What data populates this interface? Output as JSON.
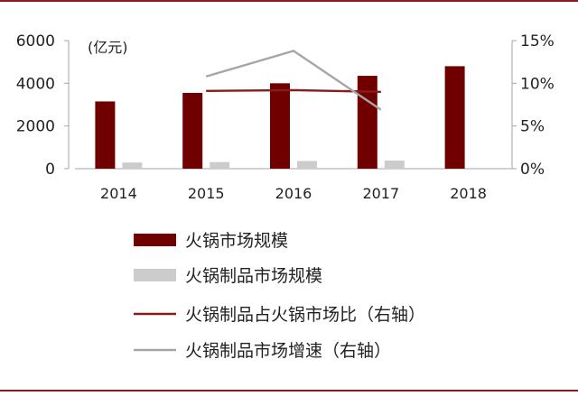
{
  "chart_data": {
    "type": "bar",
    "categories": [
      "2014",
      "2015",
      "2016",
      "2017",
      "2018"
    ],
    "unit_label": "(亿元)",
    "y_left": {
      "min": 0,
      "max": 6000,
      "ticks": [
        "0",
        "2000",
        "4000",
        "6000"
      ]
    },
    "y_right": {
      "min": 0,
      "max": 15,
      "ticks": [
        "0%",
        "5%",
        "10%",
        "15%"
      ]
    },
    "series": [
      {
        "name": "火锅市场规模",
        "kind": "bar",
        "axis": "left",
        "color": "#700000",
        "values": [
          3150,
          3550,
          4000,
          4350,
          4800
        ]
      },
      {
        "name": "火锅制品市场规模",
        "kind": "bar",
        "axis": "left",
        "color": "#cccccc",
        "values": [
          290,
          310,
          360,
          380,
          null
        ]
      },
      {
        "name": "火锅制品占火锅市场比（右轴）",
        "kind": "line",
        "axis": "right",
        "color": "#8b1a1a",
        "values": [
          null,
          9.1,
          9.2,
          9.0,
          null
        ]
      },
      {
        "name": "火锅制品市场增速（右轴）",
        "kind": "line",
        "axis": "right",
        "color": "#a6a6a6",
        "values": [
          null,
          10.8,
          13.8,
          6.9,
          null
        ]
      }
    ],
    "grid": false,
    "legend_position": "bottom"
  }
}
